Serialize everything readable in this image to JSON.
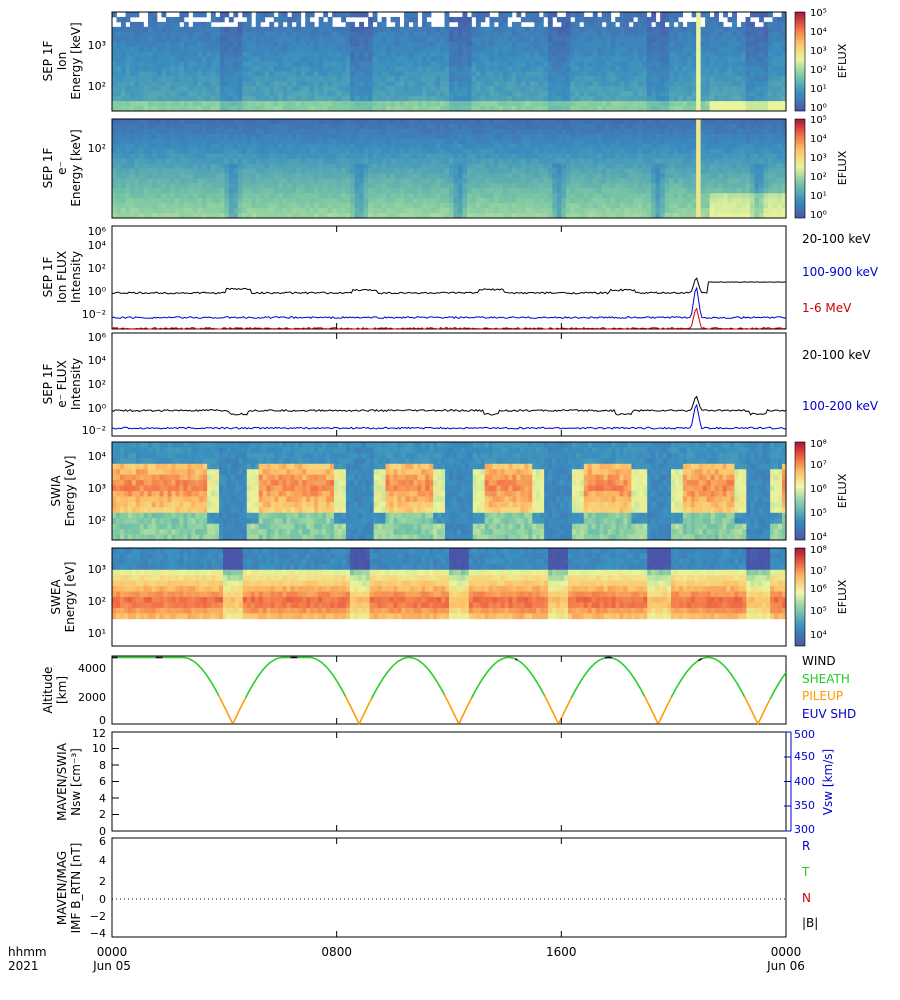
{
  "chart_data": [
    {
      "type": "heatmap",
      "ylabel_lines": [
        "SEP 1F",
        "Ion",
        "Energy [keV]"
      ],
      "yscale": "log",
      "yticks": [
        "10²",
        "10³"
      ],
      "colorbar": {
        "label": "EFLUX",
        "ticks": [
          "10⁰",
          "10¹",
          "10²",
          "10³",
          "10⁴",
          "10⁵"
        ]
      }
    },
    {
      "type": "heatmap",
      "ylabel_lines": [
        "SEP 1F",
        "e⁻",
        "Energy [keV]"
      ],
      "yscale": "log",
      "yticks": [
        "10²"
      ],
      "colorbar": {
        "label": "EFLUX",
        "ticks": [
          "10⁰",
          "10¹",
          "10²",
          "10³",
          "10⁴",
          "10⁵"
        ]
      }
    },
    {
      "type": "line",
      "ylabel_lines": [
        "SEP 1F",
        "Ion FLUX",
        "Intensity"
      ],
      "yscale": "log",
      "ylim_exp": [
        -3,
        6
      ],
      "yticks": [
        "10⁻²",
        "10⁰",
        "10²",
        "10⁴",
        "10⁶"
      ],
      "series": [
        {
          "name": "20-100 keV",
          "color": "#000000",
          "baseline_exp": 0.15,
          "bumps": [
            [
              4.5,
              0.35
            ],
            [
              9.0,
              0.25
            ],
            [
              13.5,
              0.3
            ],
            [
              18.2,
              0.25
            ],
            [
              23.0,
              0.2
            ]
          ],
          "spike": {
            "t": 20.8,
            "exp": 1.6
          },
          "plateau": {
            "from": 21.2,
            "to": 25.6,
            "exp": 1.1
          }
        },
        {
          "name": "100-900 keV",
          "color": "#0000cc",
          "baseline_exp": -2.0,
          "spike": {
            "t": 20.8,
            "exp": 0.9
          }
        },
        {
          "name": "1-6 MeV",
          "color": "#cc0000",
          "baseline_exp": -2.95,
          "spike": {
            "t": 20.8,
            "exp": -1.0
          }
        }
      ]
    },
    {
      "type": "line",
      "ylabel_lines": [
        "SEP 1F",
        "e⁻ FLUX",
        "Intensity"
      ],
      "yscale": "log",
      "ylim_exp": [
        -2.5,
        6
      ],
      "yticks": [
        "10⁻²",
        "10⁰",
        "10²",
        "10⁴",
        "10⁶"
      ],
      "series": [
        {
          "name": "20-100 keV",
          "color": "#000000",
          "baseline_exp": -0.4,
          "dips": [
            4.5,
            13.5,
            18.2,
            23.0
          ],
          "spike": {
            "t": 20.8,
            "exp": 0.9
          }
        },
        {
          "name": "100-200 keV",
          "color": "#0000cc",
          "baseline_exp": -1.85,
          "spike": {
            "t": 20.8,
            "exp": 0.3
          }
        }
      ]
    },
    {
      "type": "heatmap",
      "ylabel_lines": [
        "SWIA",
        "Energy [eV]"
      ],
      "yscale": "log",
      "yticks": [
        "10²",
        "10³",
        "10⁴"
      ],
      "colorbar": {
        "label": "EFLUX",
        "ticks": [
          "10⁴",
          "10⁵",
          "10⁶",
          "10⁷",
          "10⁸"
        ]
      }
    },
    {
      "type": "heatmap",
      "ylabel_lines": [
        "SWEA",
        "Energy [eV]"
      ],
      "yscale": "log",
      "yticks": [
        "10¹",
        "10²",
        "10³"
      ],
      "colorbar": {
        "label": "EFLUX",
        "ticks": [
          "10⁴",
          "10⁵",
          "10⁶",
          "10⁷",
          "10⁸"
        ]
      }
    },
    {
      "type": "line",
      "ylabel_lines": [
        "Altitude",
        "[km]"
      ],
      "ylim": [
        0,
        4500
      ],
      "yticks": [
        "0",
        "2000",
        "4000"
      ],
      "period_hours": 3.55,
      "periapsis_hours": [
        4.3,
        8.8,
        12.35,
        15.9,
        19.45,
        23.0
      ],
      "apoapsis_alt_km": 4400,
      "legend": [
        {
          "name": "WIND",
          "color": "#000000"
        },
        {
          "name": "SHEATH",
          "color": "#22cc22"
        },
        {
          "name": "PILEUP",
          "color": "#ff9900"
        },
        {
          "name": "EUV SHD",
          "color": "#0000cc"
        }
      ]
    },
    {
      "type": "line",
      "ylabel_lines": [
        "MAVEN/SWIA",
        "Nsw [cm⁻³]"
      ],
      "ylim": [
        0,
        12
      ],
      "yticks": [
        "0",
        "2",
        "4",
        "6",
        "8",
        "10",
        "12"
      ],
      "right_axis": {
        "label": "Vsw [km/s]",
        "color": "#0000cc",
        "ylim": [
          300,
          500
        ],
        "ticks": [
          "300",
          "350",
          "400",
          "450",
          "500"
        ]
      },
      "series": []
    },
    {
      "type": "line",
      "ylabel_lines": [
        "MAVEN/MAG",
        "IMF B_RTN [nT]"
      ],
      "ylim": [
        -4,
        6
      ],
      "yticks": [
        "−4",
        "−2",
        "0",
        "2",
        "4",
        "6"
      ],
      "zero_line": true,
      "legend": [
        {
          "name": "R",
          "color": "#0000cc"
        },
        {
          "name": "T",
          "color": "#22cc22"
        },
        {
          "name": "N",
          "color": "#cc0000"
        },
        {
          "name": "|B|",
          "color": "#000000"
        }
      ],
      "series": []
    }
  ],
  "time_axis": {
    "label_top": "hhmm",
    "label_bottom": "2021",
    "ticks": [
      {
        "label": "0000",
        "sub": "Jun 05",
        "hours": 0
      },
      {
        "label": "0800",
        "sub": "",
        "hours": 8
      },
      {
        "label": "1600",
        "sub": "",
        "hours": 16
      },
      {
        "label": "0000",
        "sub": "Jun 06",
        "hours": 24
      }
    ],
    "range_hours": [
      0,
      24
    ]
  }
}
